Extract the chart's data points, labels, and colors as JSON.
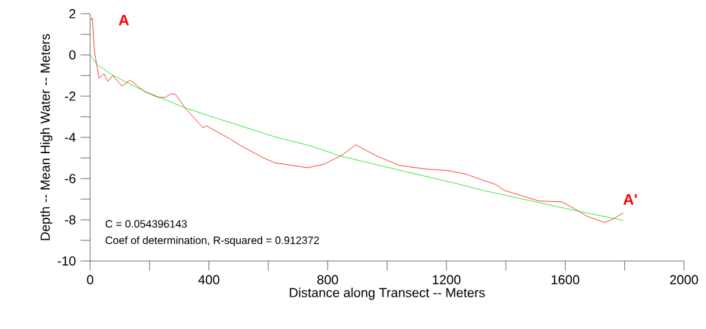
{
  "chart_data": {
    "type": "line",
    "xlabel": "Distance along Transect -- Meters",
    "ylabel": "Depth -- Mean High Water -- Meters",
    "xlim": [
      0,
      2000
    ],
    "ylim": [
      -10,
      2
    ],
    "xticks": [
      0,
      {
        "value": 200,
        "label": null
      },
      400,
      {
        "value": 600,
        "label": null
      },
      800,
      {
        "value": 1000,
        "label": null
      },
      1200,
      {
        "value": 1400,
        "label": null
      },
      1600,
      {
        "value": 1800,
        "label": null
      },
      2000
    ],
    "yticks": [
      -10,
      {
        "value": -9,
        "label": null
      },
      -8,
      {
        "value": -7,
        "label": null
      },
      -6,
      {
        "value": -5,
        "label": null
      },
      -4,
      {
        "value": -3,
        "label": null
      },
      -2,
      {
        "value": -1,
        "label": null
      },
      0,
      {
        "value": 1,
        "label": null
      },
      2
    ],
    "grid": false,
    "marker": "none",
    "line_style": "solid",
    "series": [
      {
        "color": "#ff0000",
        "x": [
          2,
          7,
          15,
          30,
          46,
          60,
          76,
          107,
          135,
          183,
          229,
          253,
          272,
          287,
          322,
          380,
          392,
          469,
          508,
          585,
          623,
          732,
          786,
          848,
          894,
          963,
          1041,
          1126,
          1203,
          1265,
          1319,
          1365,
          1396,
          1512,
          1589,
          1643,
          1674,
          1732,
          1759,
          1796
        ],
        "values": [
          1.69,
          1.8,
          0.11,
          -1.13,
          -0.91,
          -1.28,
          -1.0,
          -1.51,
          -1.22,
          -1.78,
          -2.06,
          -2.06,
          -1.89,
          -1.91,
          -2.61,
          -3.53,
          -3.44,
          -4.06,
          -4.41,
          -5.0,
          -5.24,
          -5.47,
          -5.31,
          -4.87,
          -4.36,
          -4.89,
          -5.36,
          -5.53,
          -5.61,
          -5.78,
          -6.06,
          -6.28,
          -6.58,
          -7.09,
          -7.13,
          -7.56,
          -7.83,
          -8.13,
          -7.98,
          -7.67
        ]
      },
      {
        "color": "#00e000",
        "x": [
          0,
          21,
          75,
          183,
          318,
          400,
          623,
          739,
          844,
          1000,
          1253,
          1319,
          1643,
          1796
        ],
        "values": [
          0,
          -0.44,
          -0.98,
          -1.76,
          -2.56,
          -2.95,
          -3.98,
          -4.4,
          -4.91,
          -5.45,
          -6.31,
          -6.56,
          -7.58,
          -8.03
        ]
      }
    ],
    "annotations": [
      "A",
      "A'",
      "C = 0.054396143",
      "Coef of determination, R-squared = 0.912372"
    ]
  }
}
